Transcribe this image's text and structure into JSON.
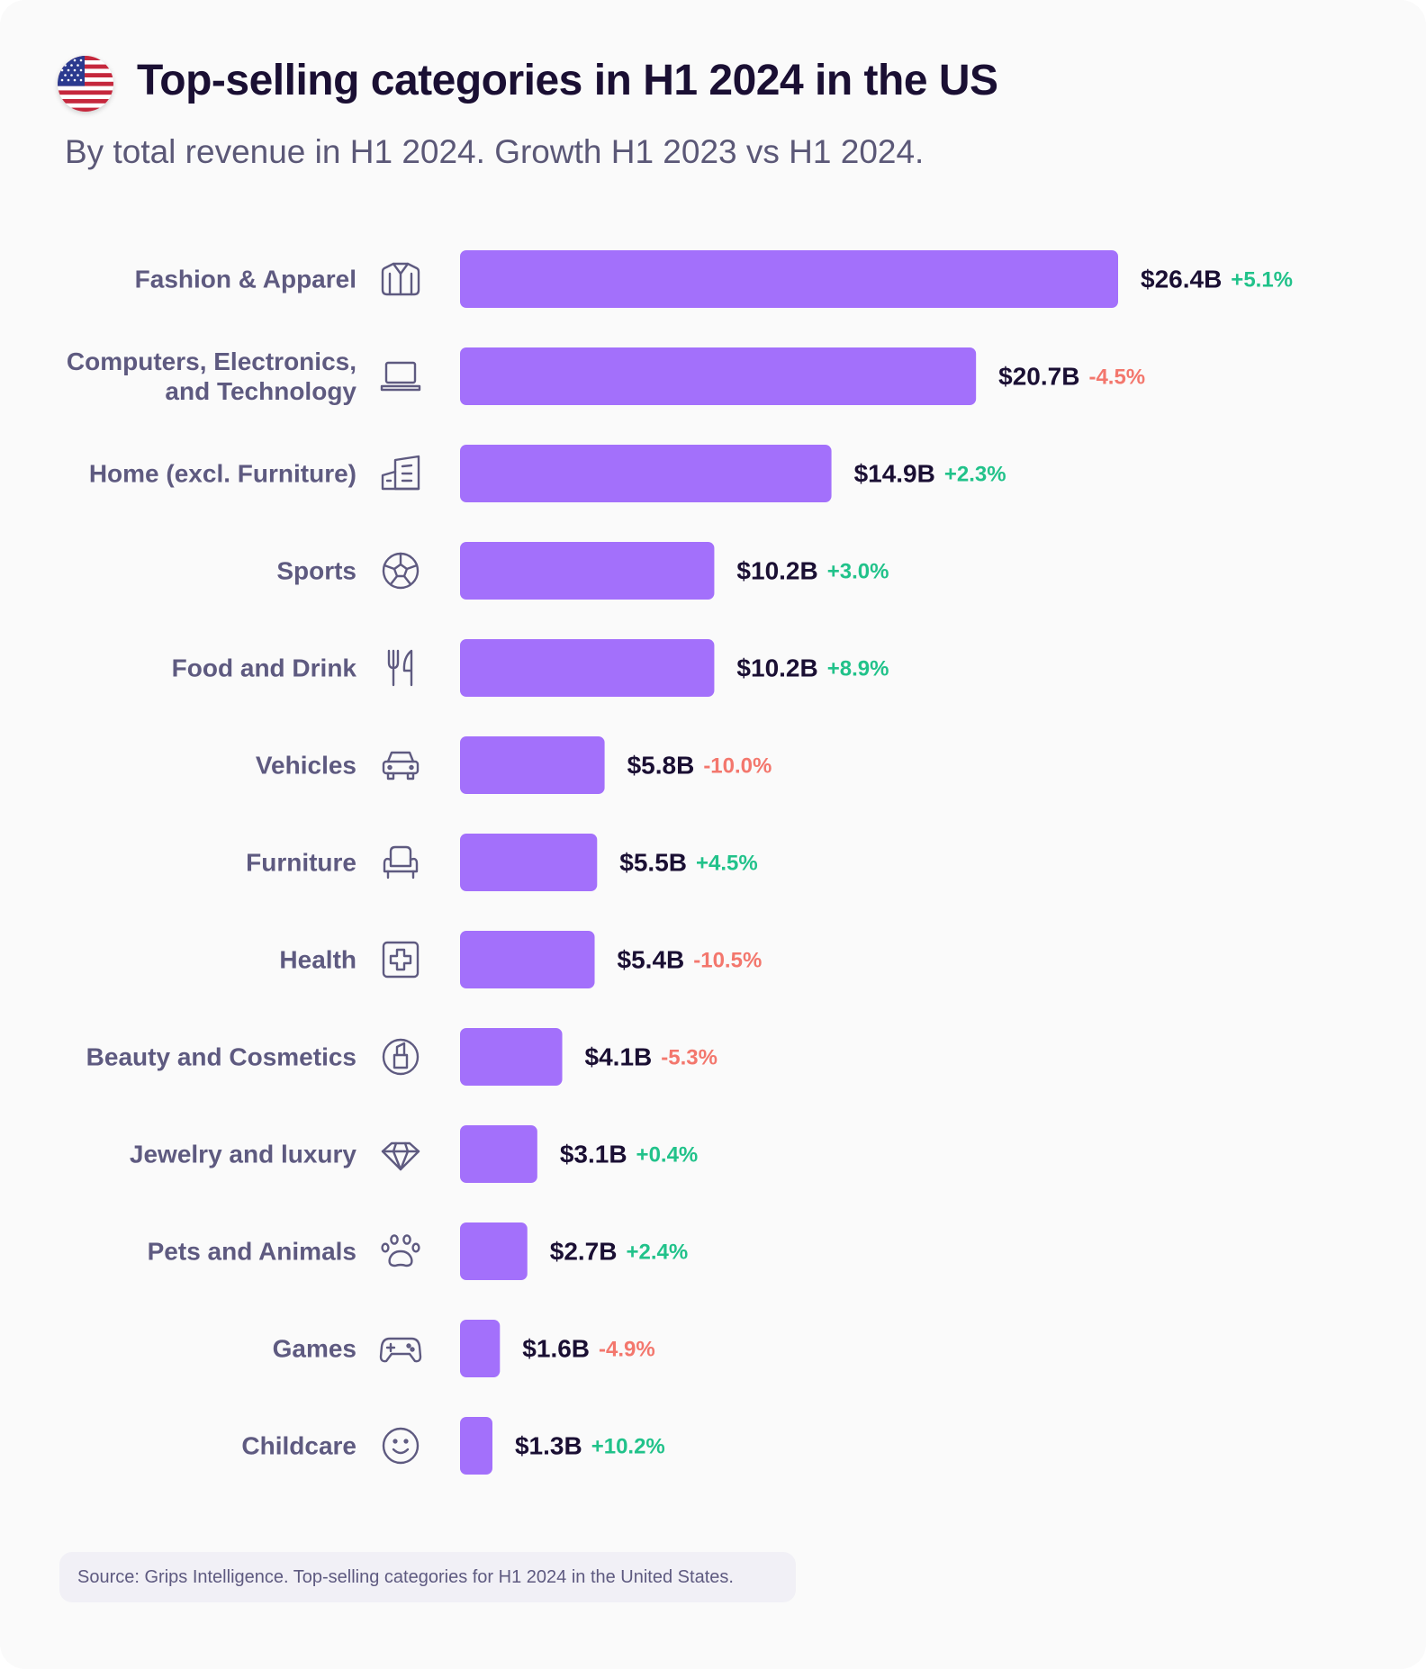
{
  "header": {
    "flag_icon": "us-flag-icon",
    "title": "Top-selling categories in H1 2024 in the US",
    "subtitle": "By total revenue in H1 2024. Growth H1 2023 vs H1 2024."
  },
  "colors": {
    "bar": "#a370fb",
    "positive": "#21c28a",
    "negative": "#f3776d",
    "label": "#5e5a80",
    "value": "#1a0f33"
  },
  "chart_data": {
    "type": "bar",
    "orientation": "horizontal",
    "categories": [
      "Fashion & Apparel",
      "Computers, Electronics, and Technology",
      "Home (excl. Furniture)",
      "Sports",
      "Food and Drink",
      "Vehicles",
      "Furniture",
      "Health",
      "Beauty and Cosmetics",
      "Jewelry and luxury",
      "Pets and Animals",
      "Games",
      "Childcare"
    ],
    "category_lines": [
      [
        "Fashion & Apparel"
      ],
      [
        "Computers, Electronics,",
        "and Technology"
      ],
      [
        "Home (excl. Furniture)"
      ],
      [
        "Sports"
      ],
      [
        "Food and Drink"
      ],
      [
        "Vehicles"
      ],
      [
        "Furniture"
      ],
      [
        "Health"
      ],
      [
        "Beauty and Cosmetics"
      ],
      [
        "Jewelry and luxury"
      ],
      [
        "Pets and Animals"
      ],
      [
        "Games"
      ],
      [
        "Childcare"
      ]
    ],
    "icons": [
      "shirt-icon",
      "laptop-icon",
      "building-icon",
      "soccer-ball-icon",
      "fork-knife-icon",
      "car-icon",
      "armchair-icon",
      "medical-cross-icon",
      "lipstick-icon",
      "diamond-icon",
      "paw-icon",
      "gamepad-icon",
      "smiley-icon"
    ],
    "values": [
      26.4,
      20.7,
      14.9,
      10.2,
      10.2,
      5.8,
      5.5,
      5.4,
      4.1,
      3.1,
      2.7,
      1.6,
      1.3
    ],
    "value_labels": [
      "$26.4B",
      "$20.7B",
      "$14.9B",
      "$10.2B",
      "$10.2B",
      "$5.8B",
      "$5.5B",
      "$5.4B",
      "$4.1B",
      "$3.1B",
      "$2.7B",
      "$1.6B",
      "$1.3B"
    ],
    "growth": [
      5.1,
      -4.5,
      2.3,
      3.0,
      8.9,
      -10.0,
      4.5,
      -10.5,
      -5.3,
      0.4,
      2.4,
      -4.9,
      10.2
    ],
    "growth_labels": [
      "+5.1%",
      "-4.5%",
      "+2.3%",
      "+3.0%",
      "+8.9%",
      "-10.0%",
      "+4.5%",
      "-10.5%",
      "-5.3%",
      "+0.4%",
      "+2.4%",
      "-4.9%",
      "+10.2%"
    ],
    "unit": "USD billions",
    "xlim": [
      0,
      26.4
    ],
    "grid": false,
    "legend": "none"
  },
  "footer": {
    "source": "Source: Grips Intelligence. Top-selling categories for H1 2024 in the United States."
  }
}
